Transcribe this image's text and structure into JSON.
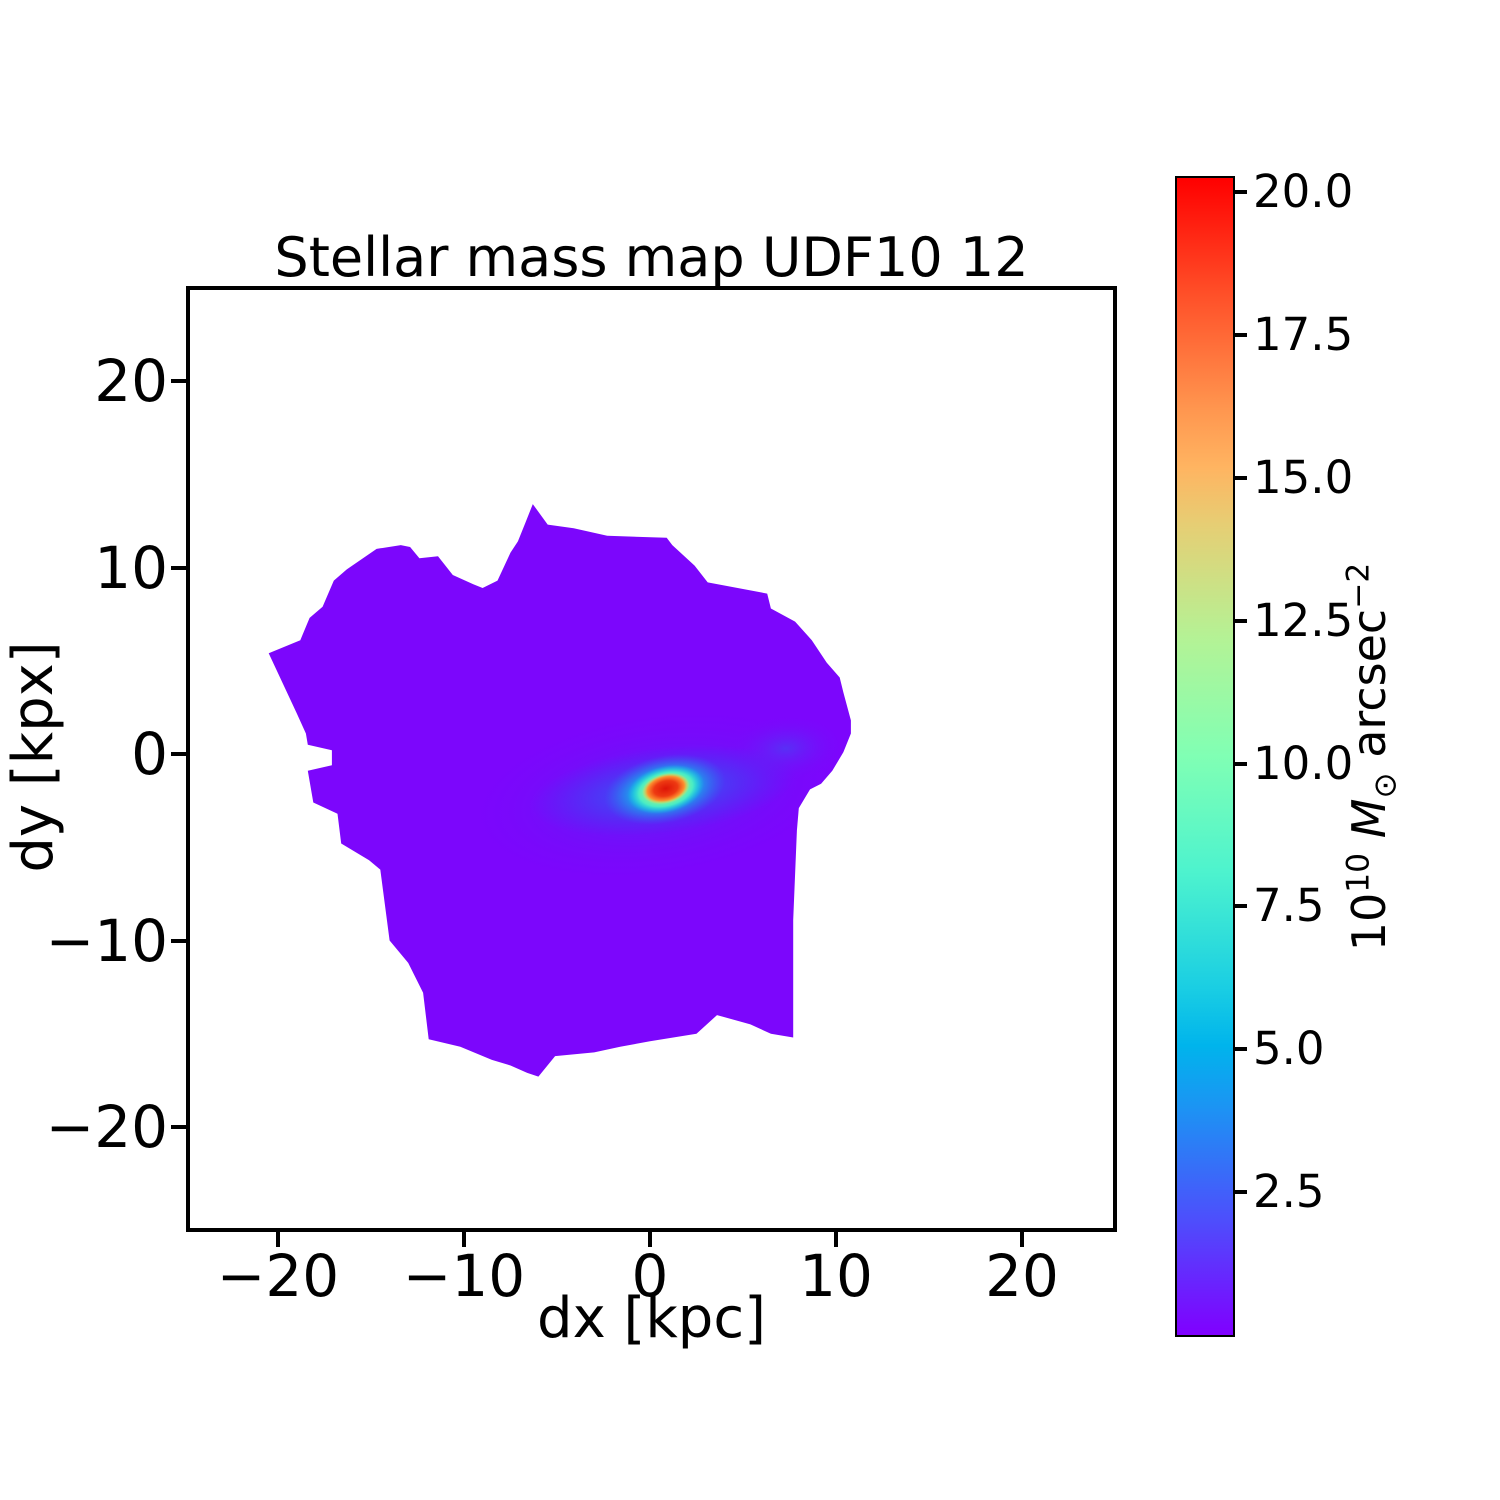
{
  "chart_data": {
    "type": "heatmap",
    "title": "Stellar mass map UDF10 12",
    "xlabel": "dx [kpc]",
    "ylabel": "dy [kpx]",
    "xlim": [
      -24.7,
      24.8
    ],
    "ylim": [
      -25.4,
      24.9
    ],
    "grid": false,
    "background_color": "#ffffff",
    "xticks": [
      {
        "value": -20,
        "label": "−20"
      },
      {
        "value": -10,
        "label": "−10"
      },
      {
        "value": 0,
        "label": "0"
      },
      {
        "value": 10,
        "label": "10"
      },
      {
        "value": 20,
        "label": "20"
      }
    ],
    "yticks": [
      {
        "value": 20,
        "label": "20"
      },
      {
        "value": 10,
        "label": "10"
      },
      {
        "value": 0,
        "label": "0"
      },
      {
        "value": -10,
        "label": "−10"
      },
      {
        "value": -20,
        "label": "−20"
      }
    ],
    "colormap": "rainbow",
    "colorbar": {
      "label_plain": "10^10 M⊙ arcsec^-2",
      "label_segments": [
        {
          "text": "10"
        },
        {
          "text": "10",
          "style": "sup"
        },
        {
          "text": " "
        },
        {
          "text": "M",
          "style": "italic"
        },
        {
          "text": "⊙",
          "style": "sub"
        },
        {
          "text": " arcsec",
          "style": "normal"
        },
        {
          "text": "−2",
          "style": "sup"
        }
      ],
      "vmin": 0,
      "vmax": 20.25,
      "ticks": [
        2.5,
        5.0,
        7.5,
        10.0,
        12.5,
        15.0,
        17.5,
        20.0
      ],
      "tick_labels": [
        "2.5",
        "5.0",
        "7.5",
        "10.0",
        "12.5",
        "15.0",
        "17.5",
        "20.0"
      ],
      "gradient_stops": [
        {
          "t": 0.0,
          "color": "#8000FF"
        },
        {
          "t": 0.1,
          "color": "#4D4FFC"
        },
        {
          "t": 0.2,
          "color": "#1A96F3"
        },
        {
          "t": 0.25,
          "color": "#00B4EC"
        },
        {
          "t": 0.3,
          "color": "#1ACEE3"
        },
        {
          "t": 0.4,
          "color": "#4DF3CE"
        },
        {
          "t": 0.5,
          "color": "#80FFB4"
        },
        {
          "t": 0.6,
          "color": "#B3F396"
        },
        {
          "t": 0.7,
          "color": "#E6CE74"
        },
        {
          "t": 0.75,
          "color": "#FFB461"
        },
        {
          "t": 0.8,
          "color": "#FF964F"
        },
        {
          "t": 0.9,
          "color": "#FF4F28"
        },
        {
          "t": 1.0,
          "color": "#FF0000"
        }
      ]
    },
    "galaxy": {
      "units": "kpc (data coordinates)",
      "base_color": "#7c06fc",
      "peak": {
        "dx": 0.8,
        "dy": -1.9,
        "value_1e10_msun_arcsec2": 20.25
      },
      "mask_polygon_kpc": [
        [
          -6.3,
          13.4
        ],
        [
          -5.5,
          12.3
        ],
        [
          -4.1,
          12.1
        ],
        [
          -2.3,
          11.7
        ],
        [
          0.9,
          11.6
        ],
        [
          1.2,
          11.2
        ],
        [
          2.4,
          10.1
        ],
        [
          3.1,
          9.2
        ],
        [
          6.3,
          8.6
        ],
        [
          6.5,
          7.8
        ],
        [
          7.8,
          7.1
        ],
        [
          8.7,
          6.1
        ],
        [
          9.5,
          4.9
        ],
        [
          10.2,
          4.1
        ],
        [
          10.4,
          3.3
        ],
        [
          10.8,
          1.8
        ],
        [
          10.8,
          1.1
        ],
        [
          10.4,
          0.1
        ],
        [
          9.8,
          -0.9
        ],
        [
          9.2,
          -1.6
        ],
        [
          8.6,
          -1.9
        ],
        [
          8.0,
          -2.9
        ],
        [
          7.9,
          -4.1
        ],
        [
          7.7,
          -8.9
        ],
        [
          7.7,
          -15.2
        ],
        [
          6.5,
          -15.0
        ],
        [
          5.4,
          -14.5
        ],
        [
          4.7,
          -14.3
        ],
        [
          3.6,
          -14.0
        ],
        [
          2.5,
          -15.0
        ],
        [
          0.0,
          -15.4
        ],
        [
          -1.6,
          -15.7
        ],
        [
          -3.0,
          -16.0
        ],
        [
          -5.1,
          -16.2
        ],
        [
          -6.0,
          -17.3
        ],
        [
          -6.6,
          -17.1
        ],
        [
          -7.5,
          -16.7
        ],
        [
          -8.5,
          -16.4
        ],
        [
          -10.2,
          -15.7
        ],
        [
          -11.9,
          -15.3
        ],
        [
          -12.2,
          -12.8
        ],
        [
          -13.0,
          -11.2
        ],
        [
          -14.0,
          -10.0
        ],
        [
          -14.5,
          -6.2
        ],
        [
          -15.1,
          -5.7
        ],
        [
          -16.6,
          -4.8
        ],
        [
          -16.8,
          -3.2
        ],
        [
          -18.1,
          -2.6
        ],
        [
          -18.4,
          -0.9
        ],
        [
          -17.1,
          -0.6
        ],
        [
          -17.1,
          0.2
        ],
        [
          -18.4,
          0.5
        ],
        [
          -18.5,
          1.1
        ],
        [
          -19.0,
          2.2
        ],
        [
          -20.5,
          5.4
        ],
        [
          -18.8,
          6.1
        ],
        [
          -18.3,
          7.3
        ],
        [
          -17.6,
          7.9
        ],
        [
          -17.0,
          9.3
        ],
        [
          -16.3,
          9.9
        ],
        [
          -14.7,
          11.0
        ],
        [
          -13.4,
          11.2
        ],
        [
          -12.9,
          11.1
        ],
        [
          -12.4,
          10.5
        ],
        [
          -11.4,
          10.6
        ],
        [
          -10.6,
          9.6
        ],
        [
          -9.5,
          9.1
        ],
        [
          -9.0,
          8.9
        ],
        [
          -8.2,
          9.3
        ],
        [
          -7.5,
          10.8
        ],
        [
          -7.1,
          11.4
        ],
        [
          -6.7,
          12.4
        ]
      ],
      "glow_layers": [
        {
          "name": "outer-halo",
          "cx": 0.3,
          "cy": -2.2,
          "rx": 10.5,
          "ry": 4.6,
          "rot": -8,
          "stops": [
            {
              "o": 0,
              "c": "rgba(84,48,243,0.85)"
            },
            {
              "o": 0.45,
              "c": "rgba(96,30,246,0.45)"
            },
            {
              "o": 1,
              "c": "rgba(122,6,250,0)"
            }
          ]
        },
        {
          "name": "ne-smudge",
          "cx": 7.3,
          "cy": 0.3,
          "rx": 3.2,
          "ry": 1.8,
          "rot": -5,
          "stops": [
            {
              "o": 0,
              "c": "rgba(74,64,243,0.7)"
            },
            {
              "o": 1,
              "c": "rgba(122,6,250,0)"
            }
          ]
        },
        {
          "name": "blue-disk",
          "cx": 0.7,
          "cy": -1.95,
          "rx": 7.2,
          "ry": 2.3,
          "rot": -7,
          "stops": [
            {
              "o": 0,
              "c": "rgba(56,96,245,0.95)"
            },
            {
              "o": 0.45,
              "c": "rgba(62,72,244,0.65)"
            },
            {
              "o": 1,
              "c": "rgba(70,50,243,0)"
            }
          ]
        },
        {
          "name": "cyan-glow",
          "cx": 0.8,
          "cy": -1.9,
          "rx": 3.3,
          "ry": 1.8,
          "rot": -12,
          "stops": [
            {
              "o": 0,
              "c": "#0FC4E6"
            },
            {
              "o": 0.5,
              "c": "rgba(18,186,232,0.9)"
            },
            {
              "o": 1,
              "c": "rgba(45,115,241,0)"
            }
          ]
        },
        {
          "name": "green-yellow-ring",
          "cx": 0.85,
          "cy": -1.9,
          "rx": 2.1,
          "ry": 1.25,
          "rot": -14,
          "stops": [
            {
              "o": 0,
              "c": "#F4E44F"
            },
            {
              "o": 0.35,
              "c": "#AEF17C"
            },
            {
              "o": 0.7,
              "c": "#4AEDC4"
            },
            {
              "o": 1,
              "c": "rgba(15,196,230,0)"
            }
          ]
        },
        {
          "name": "red-core",
          "cx": 0.85,
          "cy": -1.85,
          "rx": 1.3,
          "ry": 0.8,
          "rot": -14,
          "stops": [
            {
              "o": 0,
              "c": "#DD1407"
            },
            {
              "o": 0.5,
              "c": "#EE3A12"
            },
            {
              "o": 0.78,
              "c": "#FC9030"
            },
            {
              "o": 1,
              "c": "rgba(244,228,80,0)"
            }
          ]
        }
      ]
    }
  }
}
